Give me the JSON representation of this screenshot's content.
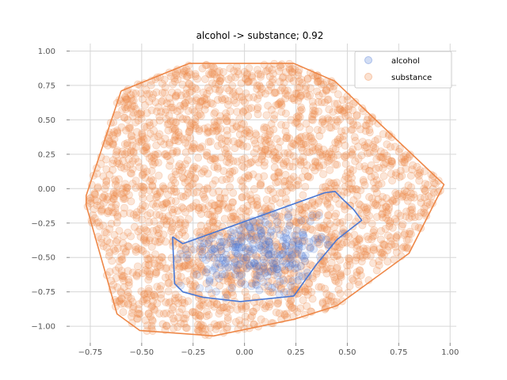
{
  "chart_data": {
    "type": "scatter",
    "title": "alcohol -> substance; 0.92",
    "xlabel": "",
    "ylabel": "",
    "xlim": [
      -0.85,
      1.03
    ],
    "ylim": [
      -1.12,
      1.02
    ],
    "x_ticks": [
      "−0.75",
      "−0.50",
      "−0.25",
      "0.00",
      "0.25",
      "0.50",
      "0.75",
      "1.00"
    ],
    "x_tick_values": [
      -0.75,
      -0.5,
      -0.25,
      0.0,
      0.25,
      0.5,
      0.75,
      1.0
    ],
    "y_ticks": [
      "1.00",
      "0.75",
      "0.50",
      "0.25",
      "0.00",
      "−0.25",
      "−0.50",
      "−0.75",
      "−1.00"
    ],
    "y_tick_values": [
      1.0,
      0.75,
      0.5,
      0.25,
      0.0,
      -0.25,
      -0.5,
      -0.75,
      -1.0
    ],
    "grid": true,
    "legend_position": "top-right",
    "series": [
      {
        "name": "alcohol",
        "color": "#4a78d4",
        "hull": [
          [
            -0.35,
            -0.35
          ],
          [
            -0.3,
            -0.4
          ],
          [
            0.39,
            -0.03
          ],
          [
            0.44,
            -0.02
          ],
          [
            0.48,
            -0.08
          ],
          [
            0.53,
            -0.15
          ],
          [
            0.57,
            -0.23
          ],
          [
            0.45,
            -0.37
          ],
          [
            0.35,
            -0.55
          ],
          [
            0.24,
            -0.78
          ],
          [
            -0.02,
            -0.82
          ],
          [
            -0.2,
            -0.79
          ],
          [
            -0.3,
            -0.75
          ],
          [
            -0.34,
            -0.69
          ]
        ],
        "point_region": {
          "x_center": 0.08,
          "y_center": -0.45,
          "x_spread": 0.3,
          "y_spread": 0.22
        },
        "point_count": 300
      },
      {
        "name": "substance",
        "color": "#ee8747",
        "hull": [
          [
            -0.6,
            0.71
          ],
          [
            -0.27,
            0.91
          ],
          [
            0.24,
            0.91
          ],
          [
            0.44,
            0.78
          ],
          [
            0.97,
            0.03
          ],
          [
            0.8,
            -0.47
          ],
          [
            0.45,
            -0.85
          ],
          [
            0.24,
            -0.95
          ],
          [
            -0.15,
            -1.07
          ],
          [
            -0.51,
            -1.03
          ],
          [
            -0.62,
            -0.91
          ],
          [
            -0.77,
            -0.12
          ],
          [
            -0.77,
            -0.05
          ]
        ],
        "point_count": 2400
      }
    ]
  }
}
